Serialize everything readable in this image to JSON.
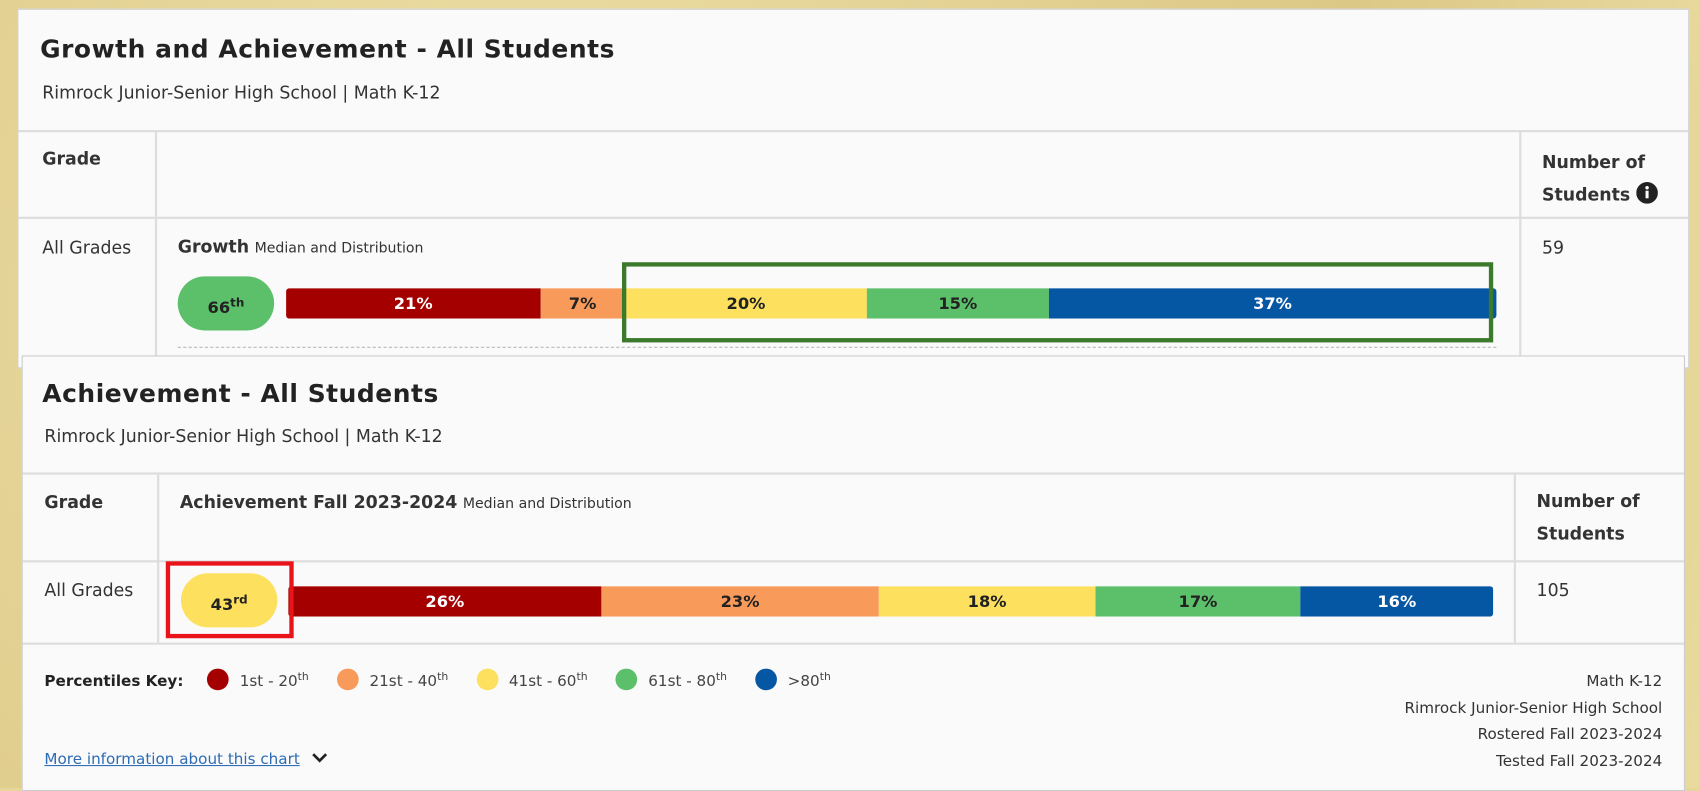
{
  "panels": [
    {
      "title": "Growth and Achievement - All Students",
      "subtitle": "Rimrock Junior-Senior High School | Math K-12",
      "grade_header": "Grade",
      "students_header": "Number of Students",
      "row_label": "All Grades",
      "measure": "Growth",
      "measure_note": "Median and Distribution",
      "median": 66,
      "median_suffix": "th",
      "median_color": "#5cbf6a",
      "students": 59,
      "distribution": {
        "values": [
          21,
          7,
          20,
          15,
          37
        ],
        "value_labels": [
          "21%",
          "7%",
          "20%",
          "15%",
          "37%"
        ],
        "colors": [
          "#a50000",
          "#f79a5a",
          "#fde05e",
          "#5cbf6a",
          "#0657a3"
        ]
      }
    },
    {
      "title": "Achievement - All Students",
      "subtitle": "Rimrock Junior-Senior High School | Math K-12",
      "grade_header": "Grade",
      "students_header": "Number of Students",
      "row_label": "All Grades",
      "measure": "Achievement Fall 2023-2024",
      "measure_note": "Median and Distribution",
      "median": 43,
      "median_suffix": "rd",
      "median_color": "#fde05e",
      "students": 105,
      "distribution": {
        "values": [
          26,
          23,
          18,
          17,
          16
        ],
        "value_labels": [
          "26%",
          "23%",
          "18%",
          "17%",
          "16%"
        ],
        "colors": [
          "#a50000",
          "#f79a5a",
          "#fde05e",
          "#5cbf6a",
          "#0657a3"
        ]
      }
    }
  ],
  "key": {
    "label": "Percentiles Key:",
    "items": [
      {
        "text": "1st - 20",
        "sup": "th",
        "color": "#a50000"
      },
      {
        "text": "21st - 40",
        "sup": "th",
        "color": "#f79a5a"
      },
      {
        "text": "41st - 60",
        "sup": "th",
        "color": "#fde05e"
      },
      {
        "text": "61st - 80",
        "sup": "th",
        "color": "#5cbf6a"
      },
      {
        "text": ">80",
        "sup": "th",
        "color": "#0657a3"
      }
    ]
  },
  "notes": [
    "Math K-12",
    "Rimrock Junior-Senior High School",
    "Rostered Fall 2023-2024",
    "Tested Fall 2023-2024"
  ],
  "link": "More information about this chart"
}
